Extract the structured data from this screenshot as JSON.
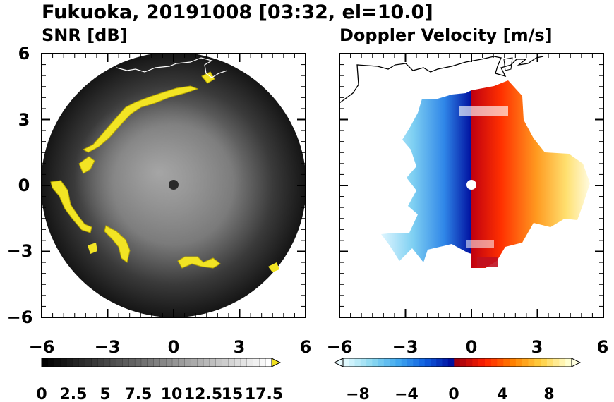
{
  "title": "Fukuoka, 20191008 [03:32, el=10.0]",
  "chart_data": [
    {
      "type": "heatmap",
      "title": "SNR [dB]",
      "xlim": [
        -6,
        6
      ],
      "ylim": [
        -6,
        6
      ],
      "xticks": [
        "−6",
        "−3",
        "0",
        "3",
        "6"
      ],
      "yticks": [
        "6",
        "3",
        "0",
        "−3",
        "−6"
      ],
      "colorbar": {
        "min": 0,
        "max": 18.5,
        "extend": "max",
        "ticks": [
          "0",
          "2.5",
          "5",
          "7.5",
          "10",
          "12.5",
          "15",
          "17.5"
        ],
        "colors": [
          "#000000",
          "#ffffff"
        ],
        "overflow_color": "#f0e020"
      }
    },
    {
      "type": "heatmap",
      "title": "Doppler Velocity [m/s]",
      "xlim": [
        -6,
        6
      ],
      "ylim": [
        -6,
        6
      ],
      "xticks": [
        "−6",
        "−3",
        "0",
        "3",
        "6"
      ],
      "yticks": [
        "6",
        "3",
        "0",
        "−3",
        "−6"
      ],
      "colorbar": {
        "min": -9.5,
        "max": 9.5,
        "extend": "both",
        "ticks": [
          "−8",
          "−4",
          "0",
          "4",
          "8"
        ],
        "neg_colors": [
          "#e0faff",
          "#8ad8f0",
          "#40a8f0",
          "#1060e0",
          "#0010a0"
        ],
        "pos_colors": [
          "#a00010",
          "#ff2000",
          "#ff8000",
          "#ffd040",
          "#ffffd0"
        ]
      }
    }
  ]
}
